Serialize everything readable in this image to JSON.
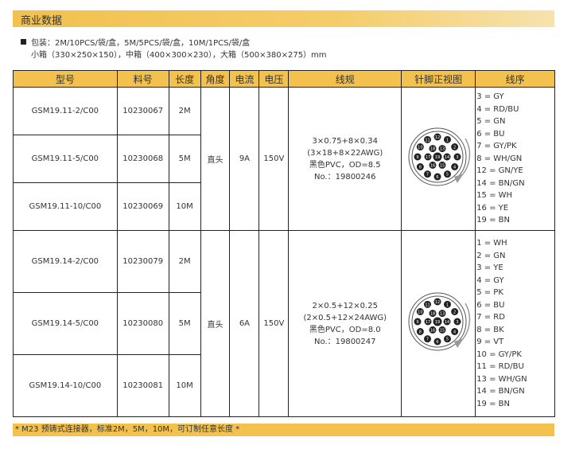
{
  "title": "商业数据",
  "packaging": {
    "line1": "包装：2M/10PCS/袋/盒，5M/5PCS/袋/盒，10M/1PCS/袋/盒",
    "line2": "小箱（330×250×150），中箱（400×300×230），大箱（500×380×275）mm"
  },
  "headers": [
    "型号",
    "料号",
    "长度",
    "角度",
    "电流",
    "电压",
    "线规",
    "针脚正视图",
    "线序"
  ],
  "groups": [
    {
      "rows": [
        {
          "model": "GSM19.11-2/C00",
          "part": "10230067",
          "length": "2M"
        },
        {
          "model": "GSM19.11-5/C00",
          "part": "10230068",
          "length": "5M"
        },
        {
          "model": "GSM19.11-10/C00",
          "part": "10230069",
          "length": "10M"
        }
      ],
      "angle": "直头",
      "current": "9A",
      "voltage": "150V",
      "gauge": [
        "3×0.75+8×0.34",
        "(3×18+8×22AWG)",
        "黑色PVC，OD=8.5",
        "No.：19800246"
      ],
      "wiring": [
        "3 = GY",
        "4 = RD/BU",
        "5 = GN",
        "6 = BU",
        "7 = GY/PK",
        "8 = WH/GN",
        "12 = GN/YE",
        "14 = BN/GN",
        "15 = WH",
        "16 = YE",
        "19 = BN"
      ]
    },
    {
      "rows": [
        {
          "model": "GSM19.14-2/C00",
          "part": "10230079",
          "length": "2M"
        },
        {
          "model": "GSM19.14-5/C00",
          "part": "10230080",
          "length": "5M"
        },
        {
          "model": "GSM19.14-10/C00",
          "part": "10230081",
          "length": "10M"
        }
      ],
      "angle": "直头",
      "current": "6A",
      "voltage": "150V",
      "gauge": [
        "2×0.5+12×0.25",
        "(2×0.5+12×24AWG)",
        "黑色PVC，OD=8.0",
        "No.：19800247"
      ],
      "wiring": [
        "1 = WH",
        "2 = GN",
        "3 = YE",
        "4 = GY",
        "5 = PK",
        "6 = BU",
        "7 = RD",
        "8 = BK",
        "9 = VT",
        "10 = GY/PK",
        "11 = RD/BU",
        "13 = WH/GN",
        "14 = BN/GN",
        "19 = BN"
      ]
    }
  ],
  "connector_pins": [
    "1",
    "2",
    "3",
    "4",
    "5",
    "6",
    "7",
    "8",
    "9",
    "10",
    "11",
    "12",
    "13",
    "14",
    "15",
    "16",
    "17",
    "18",
    "19"
  ],
  "footer": "* M23 预铸式连接器，标准2M，5M，10M，可订制任意长度 *",
  "colors": {
    "accent": "#f2c14e"
  }
}
